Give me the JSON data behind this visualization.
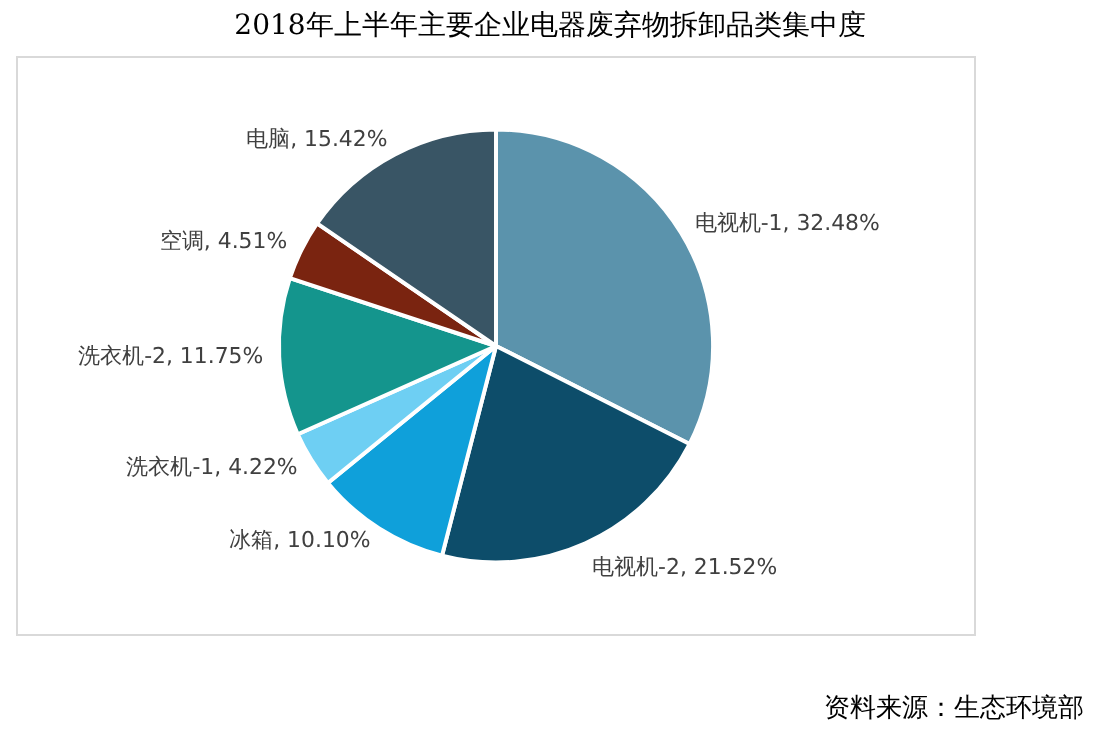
{
  "chart_data": {
    "type": "pie",
    "title": "2018年上半年主要企业电器废弃物拆卸品类集中度",
    "categories": [
      "电视机-1",
      "电视机-2",
      "冰箱",
      "洗衣机-1",
      "洗衣机-2",
      "空调",
      "电脑"
    ],
    "values": [
      32.48,
      21.52,
      10.1,
      4.22,
      11.75,
      4.51,
      15.42
    ],
    "colors": [
      "#5b93ac",
      "#0d4d6a",
      "#0fa0da",
      "#6ecff3",
      "#14958d",
      "#7a2410",
      "#395565"
    ],
    "value_labels": [
      "32.48%",
      "21.52%",
      "10.10%",
      "4.22%",
      "11.75%",
      "4.51%",
      "15.42%"
    ],
    "legend": false,
    "annotations": [
      "资料来源：生态环境部"
    ]
  }
}
